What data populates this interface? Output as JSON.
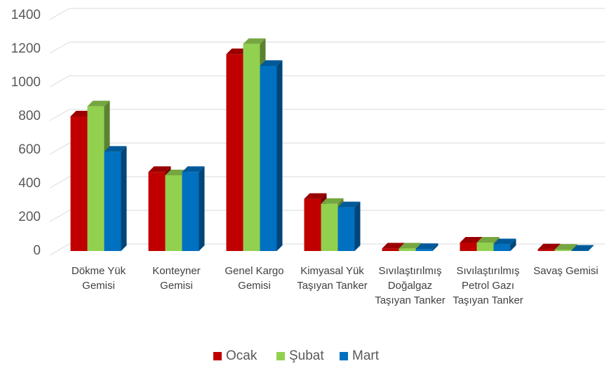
{
  "chart_data": {
    "type": "bar3d",
    "categories": [
      "Dökme Yük Gemisi",
      "Konteyner Gemisi",
      "Genel Kargo Gemisi",
      "Kimyasal Yük Taşıyan Tanker",
      "Sıvılaştırılmış Doğalgaz Taşıyan Tanker",
      "Sıvılaştırılmış Petrol Gazı Taşıyan Tanker",
      "Savaş Gemisi"
    ],
    "series": [
      {
        "name": "Ocak",
        "color": "#c00000",
        "values": [
          800,
          470,
          1170,
          310,
          15,
          50,
          10
        ]
      },
      {
        "name": "Şubat",
        "color": "#92d050",
        "values": [
          860,
          450,
          1230,
          280,
          15,
          50,
          8
        ]
      },
      {
        "name": "Mart",
        "color": "#0070c0",
        "values": [
          590,
          470,
          1100,
          260,
          12,
          40,
          2
        ]
      }
    ],
    "ylim": [
      0,
      1400
    ],
    "yticks": [
      0,
      200,
      400,
      600,
      800,
      1000,
      1200,
      1400
    ],
    "grid": true,
    "legend": "bottom"
  }
}
